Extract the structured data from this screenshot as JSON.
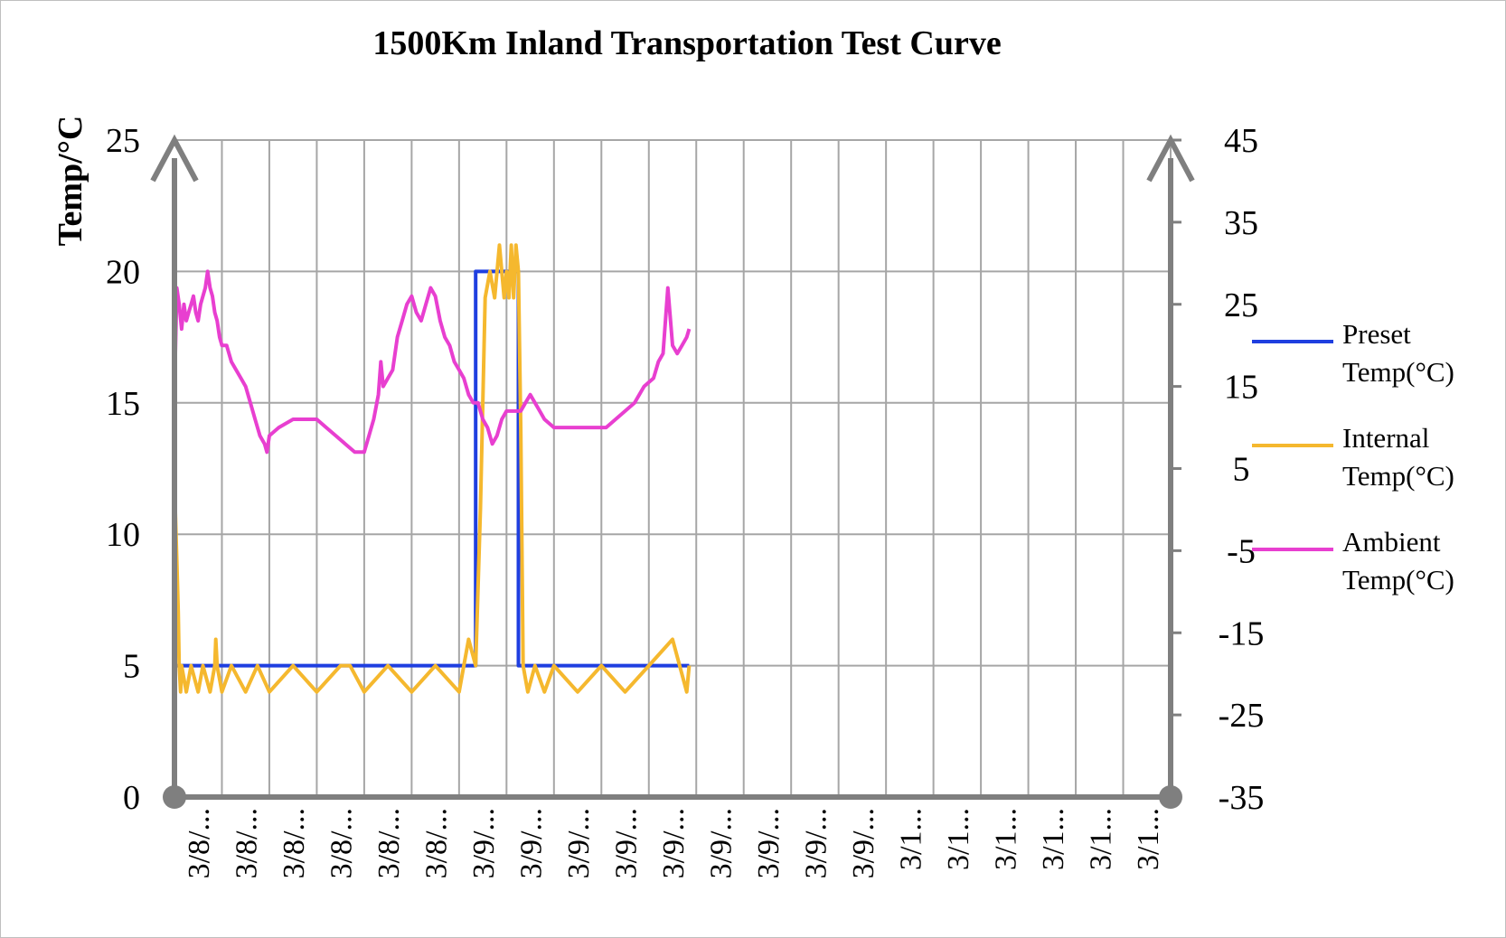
{
  "chart_data": {
    "type": "line",
    "title": "1500Km Inland Transportation Test Curve",
    "ylabel": "Temp/°C",
    "ylim": [
      0,
      25
    ],
    "y2lim": [
      -35,
      45
    ],
    "y_ticks": [
      "0",
      "5",
      "10",
      "15",
      "20",
      "25"
    ],
    "y2_ticks": [
      "-35",
      "-25",
      "-15",
      "-5",
      "5",
      "15",
      "25",
      "35",
      "45"
    ],
    "categories": [
      "3/8/...",
      "3/8/...",
      "3/8/...",
      "3/8/...",
      "3/8/...",
      "3/8/...",
      "3/9/...",
      "3/9/...",
      "3/9/...",
      "3/9/...",
      "3/9/...",
      "3/9/...",
      "3/9/...",
      "3/9/...",
      "3/9/...",
      "3/1...",
      "3/1...",
      "3/1...",
      "3/1...",
      "3/1...",
      "3/1..."
    ],
    "grid": true,
    "legend_position": "right",
    "series": [
      {
        "name": "Preset Temp(°C)",
        "axis": "left",
        "color": "#1f3fe0",
        "x": [
          0,
          6.35,
          6.35,
          7.25,
          7.25,
          10.85
        ],
        "y": [
          5,
          5,
          20,
          20,
          5,
          5
        ]
      },
      {
        "name": "Internal Temp(°C)",
        "axis": "left",
        "color": "#f5b82e",
        "x": [
          0,
          0.05,
          0.08,
          0.1,
          0.13,
          0.15,
          0.25,
          0.35,
          0.5,
          0.6,
          0.75,
          0.85,
          0.87,
          0.9,
          1.0,
          1.2,
          1.5,
          1.75,
          2.0,
          2.5,
          3.0,
          3.5,
          3.7,
          4.0,
          4.5,
          5.0,
          5.5,
          6.0,
          6.1,
          6.2,
          6.35,
          6.45,
          6.55,
          6.65,
          6.75,
          6.85,
          6.95,
          7.0,
          7.05,
          7.1,
          7.15,
          7.2,
          7.25,
          7.3,
          7.35,
          7.45,
          7.6,
          7.8,
          8.0,
          8.5,
          9.0,
          9.5,
          10.0,
          10.5,
          10.8,
          10.85
        ],
        "y": [
          12,
          9,
          7,
          5,
          4,
          5,
          4,
          5,
          4,
          5,
          4,
          5,
          6,
          5,
          4,
          5,
          4,
          5,
          4,
          5,
          4,
          5,
          5,
          4,
          5,
          4,
          5,
          4,
          5,
          6,
          5,
          11,
          19,
          20,
          19,
          21,
          19,
          20,
          19,
          21,
          19,
          21,
          20,
          14,
          5,
          4,
          5,
          4,
          5,
          4,
          5,
          4,
          5,
          6,
          4,
          5
        ]
      },
      {
        "name": "Ambient Temp(°C)",
        "axis": "right",
        "color": "#e83fd0",
        "x": [
          0,
          0.05,
          0.1,
          0.15,
          0.2,
          0.25,
          0.3,
          0.35,
          0.4,
          0.45,
          0.5,
          0.55,
          0.6,
          0.65,
          0.7,
          0.75,
          0.8,
          0.85,
          0.9,
          0.95,
          1.0,
          1.1,
          1.2,
          1.3,
          1.4,
          1.5,
          1.6,
          1.7,
          1.8,
          1.9,
          1.95,
          2.0,
          2.2,
          2.5,
          2.8,
          3.0,
          3.2,
          3.4,
          3.6,
          3.8,
          4.0,
          4.1,
          4.2,
          4.3,
          4.35,
          4.4,
          4.5,
          4.6,
          4.7,
          4.8,
          4.9,
          5.0,
          5.1,
          5.2,
          5.3,
          5.4,
          5.5,
          5.6,
          5.7,
          5.8,
          5.9,
          6.0,
          6.1,
          6.2,
          6.3,
          6.4,
          6.5,
          6.6,
          6.7,
          6.8,
          6.9,
          7.0,
          7.1,
          7.2,
          7.3,
          7.4,
          7.5,
          7.6,
          7.7,
          7.8,
          8.0,
          8.3,
          8.6,
          8.9,
          9.1,
          9.3,
          9.5,
          9.7,
          9.9,
          10.1,
          10.2,
          10.3,
          10.4,
          10.5,
          10.6,
          10.7,
          10.8,
          10.85
        ],
        "y": [
          14,
          27,
          25,
          22,
          25,
          23,
          24,
          25,
          26,
          24,
          23,
          25,
          26,
          27,
          29,
          27,
          26,
          24,
          23,
          21,
          20,
          20,
          18,
          17,
          16,
          15,
          13,
          11,
          9,
          8,
          7,
          9,
          10,
          11,
          11,
          11,
          10,
          9,
          8,
          7,
          7,
          9,
          11,
          14,
          18,
          15,
          16,
          17,
          21,
          23,
          25,
          26,
          24,
          23,
          25,
          27,
          26,
          23,
          21,
          20,
          18,
          17,
          16,
          14,
          13,
          13,
          11,
          10,
          8,
          9,
          11,
          12,
          12,
          12,
          12,
          13,
          14,
          13,
          12,
          11,
          10,
          10,
          10,
          10,
          10,
          11,
          12,
          13,
          15,
          16,
          18,
          19,
          27,
          20,
          19,
          20,
          21,
          22
        ]
      }
    ]
  }
}
